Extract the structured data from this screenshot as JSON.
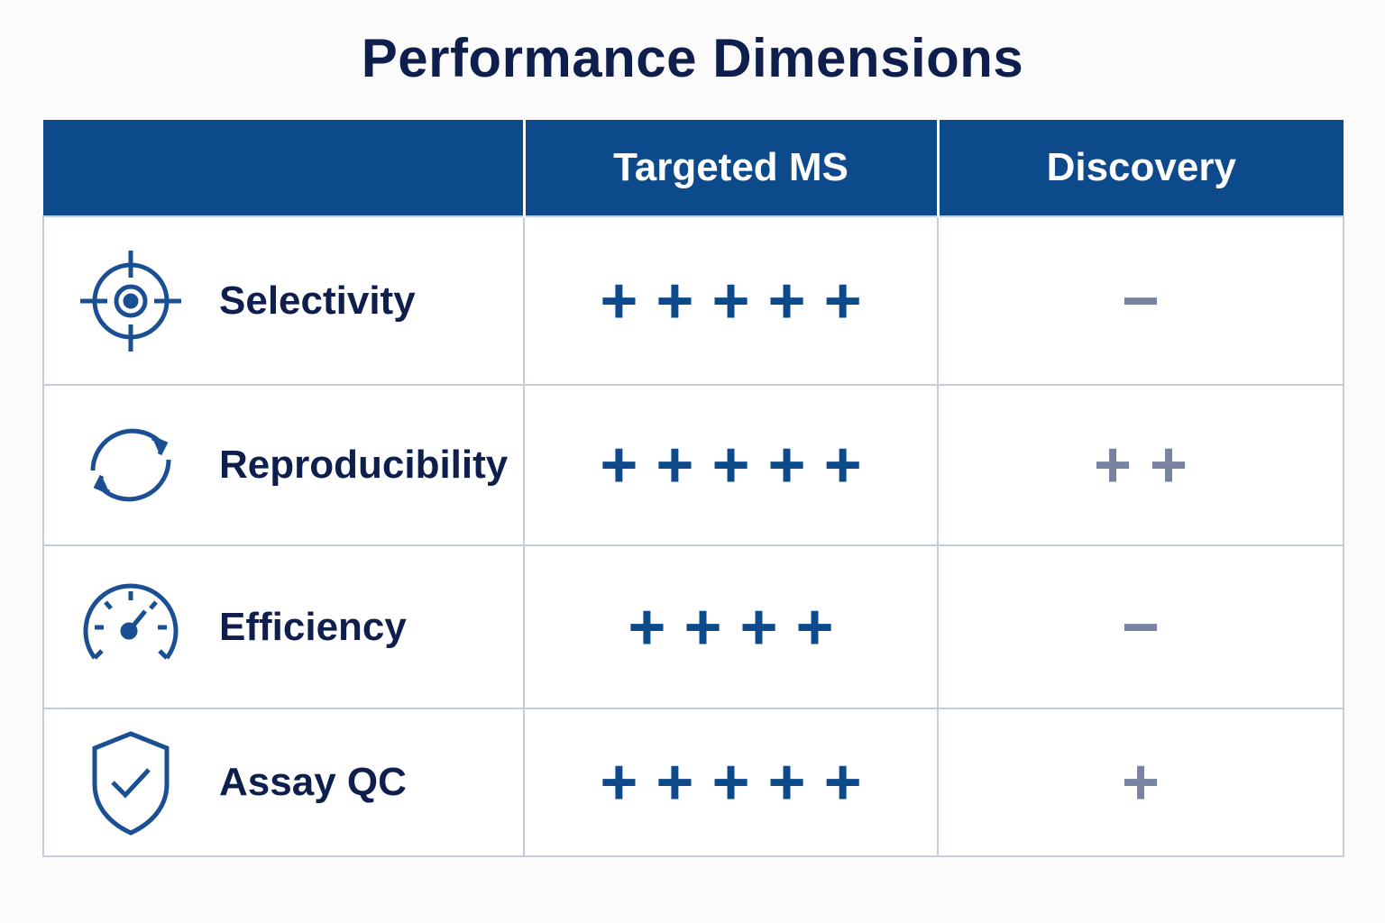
{
  "title": "Performance Dimensions",
  "table": {
    "header": [
      "Targeted MS",
      "Discovery"
    ],
    "rows": [
      [
        "Selectivity",
        "+++++",
        "−"
      ],
      [
        "Reproducibility",
        "+++++",
        "++"
      ],
      [
        "Efficiency",
        "++++",
        "−"
      ],
      [
        "Assay QC",
        "+++++",
        "+"
      ]
    ]
  }
}
